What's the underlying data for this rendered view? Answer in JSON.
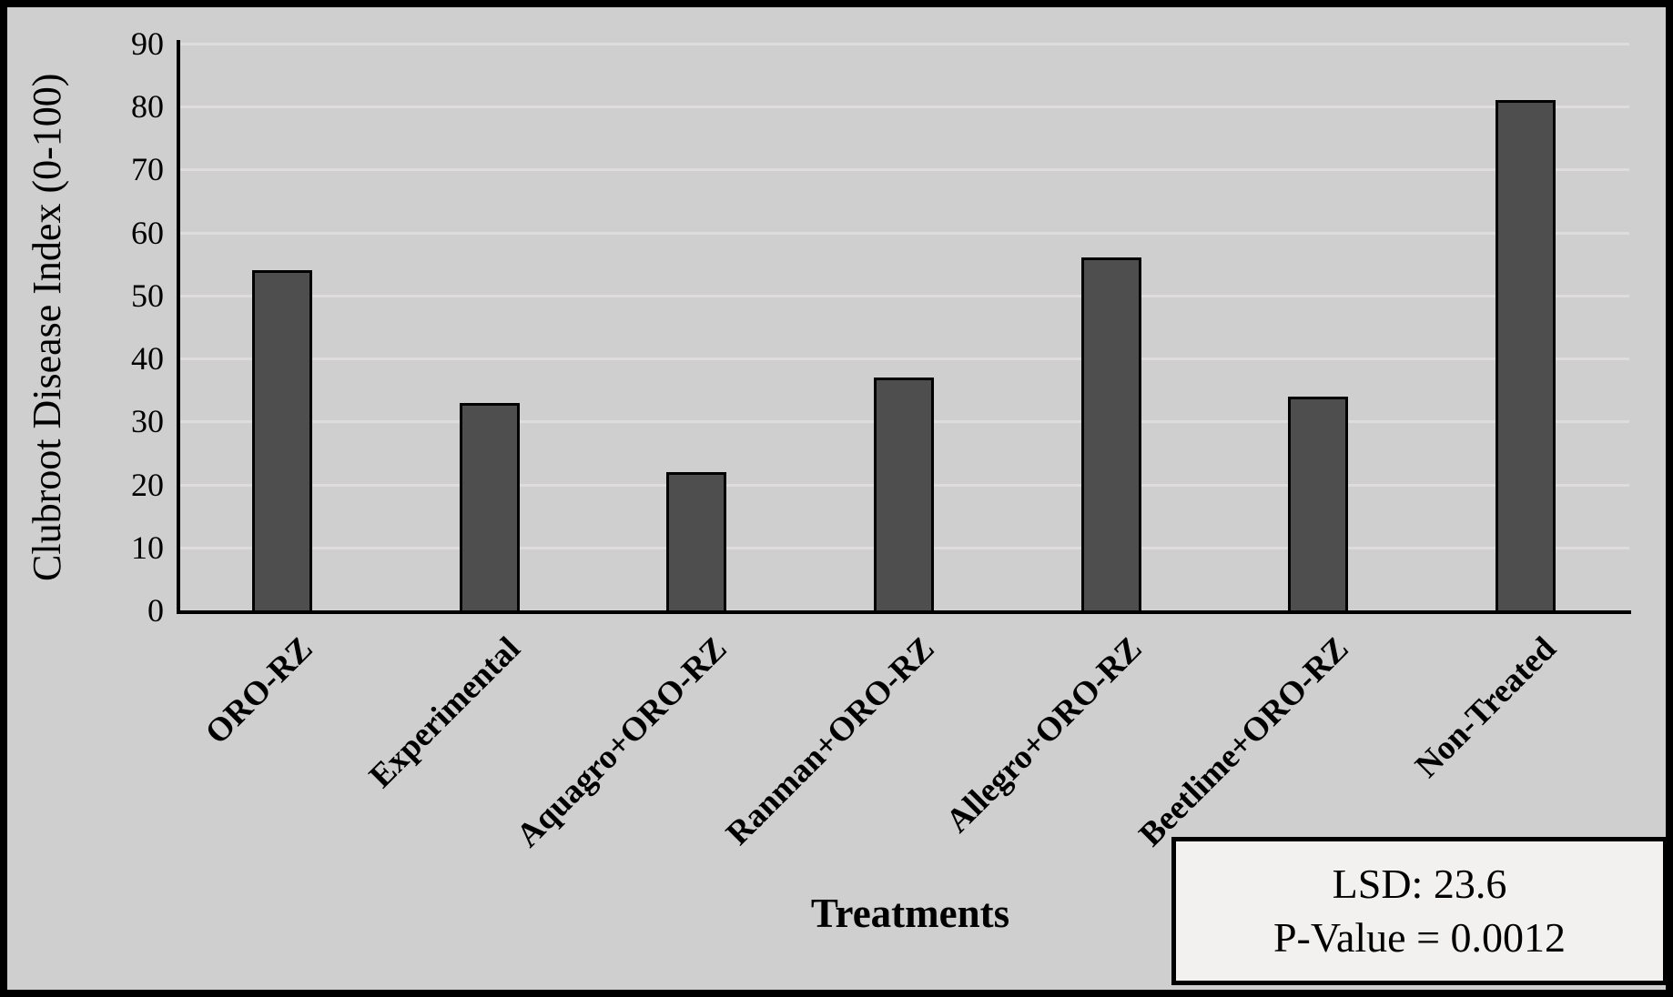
{
  "chart_data": {
    "type": "bar",
    "categories": [
      "ORO-RZ",
      "Experimental",
      "Aquagro+ORO-RZ",
      "Ranman+ORO-RZ",
      "Allegro+ORO-RZ",
      "Beetlime+ORO-RZ",
      "Non-Treated"
    ],
    "values": [
      54,
      33,
      22,
      37,
      56,
      34,
      81
    ],
    "title": "",
    "xlabel": "Treatments",
    "ylabel": "Clubroot Disease Index (0-100)",
    "ylim": [
      0,
      90
    ],
    "yticks": [
      0,
      10,
      20,
      30,
      40,
      50,
      60,
      70,
      80,
      90
    ],
    "grid": "horizontal",
    "legend": "none",
    "bar_color": "#4f4e4e",
    "bar_border_color": "#000000",
    "background_color": "#d0cfcf",
    "gridline_color": "#dedcdc"
  },
  "annotation": {
    "line1": "LSD: 23.6",
    "line2": "P-Value = 0.0012"
  }
}
